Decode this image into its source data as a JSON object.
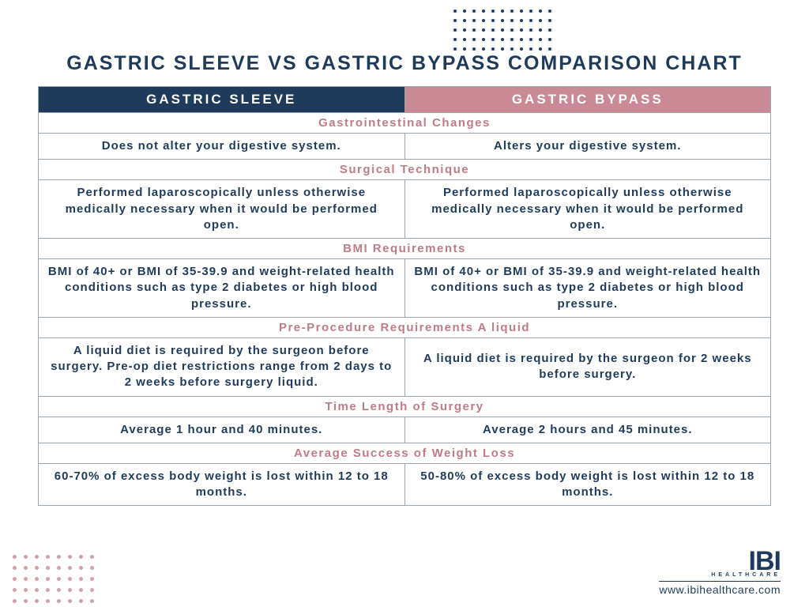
{
  "colors": {
    "dark_blue": "#1f3b5c",
    "pink_header": "#c98a96",
    "pink_text": "#c07b88",
    "pink_dots": "#d4a0a8",
    "border": "#9aa4ad",
    "background": "#ffffff"
  },
  "decorations": {
    "top_dot_grid": {
      "rows": 5,
      "cols": 11,
      "dot_color": "#1f3b5c"
    },
    "bottom_dot_grid": {
      "rows": 5,
      "cols": 8,
      "dot_color": "#d4a0a8"
    }
  },
  "title": "GASTRIC SLEEVE VS GASTRIC BYPASS COMPARISON CHART",
  "headers": {
    "sleeve": "GASTRIC SLEEVE",
    "bypass": "GASTRIC BYPASS"
  },
  "sections": [
    {
      "label": "Gastrointestinal Changes",
      "sleeve": "Does not alter your digestive system.",
      "bypass": "Alters your digestive system."
    },
    {
      "label": "Surgical Technique",
      "sleeve": "Performed laparoscopically unless otherwise medically necessary when it would be performed open.",
      "bypass": "Performed laparoscopically unless otherwise medically necessary when it would be performed open."
    },
    {
      "label": "BMI Requirements",
      "sleeve": "BMI of 40+ or BMI of 35-39.9 and weight-related health conditions such as type 2 diabetes or high blood pressure.",
      "bypass": "BMI of 40+ or BMI of 35-39.9 and weight-related health conditions such as type 2 diabetes or high blood pressure."
    },
    {
      "label": "Pre-Procedure Requirements A liquid",
      "sleeve": "A liquid diet is required by the surgeon before surgery. Pre-op diet restrictions range from 2 days to 2 weeks before surgery liquid.",
      "bypass": "A liquid diet is required by the surgeon for 2 weeks before surgery."
    },
    {
      "label": "Time Length of Surgery",
      "sleeve": "Average 1 hour and 40 minutes.",
      "bypass": "Average 2 hours and 45 minutes."
    },
    {
      "label": "Average Success of Weight Loss",
      "sleeve": "60-70% of excess body weight is lost within 12 to 18 months.",
      "bypass": "50-80% of excess body weight is lost within 12 to 18 months."
    }
  ],
  "footer": {
    "logo_text": "IBI",
    "logo_sub": "HEALTHCARE",
    "url": "www.ibihealthcare.com"
  }
}
